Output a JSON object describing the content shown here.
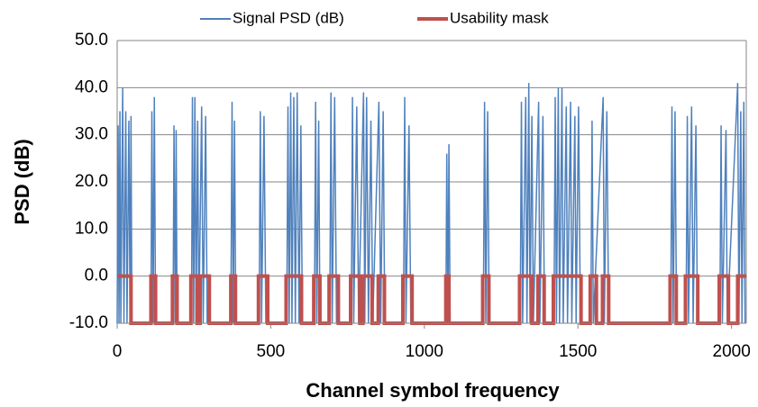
{
  "chart_data": {
    "type": "line",
    "xlabel": "Channel symbol frequency",
    "ylabel": "PSD (dB)",
    "xlim": [
      0,
      2048
    ],
    "xticks": [
      0,
      500,
      1000,
      1500,
      2000
    ],
    "ylim": [
      -10,
      50
    ],
    "yticks": [
      {
        "value": -10,
        "label": "-10.0"
      },
      {
        "value": 0,
        "label": "0.0"
      },
      {
        "value": 10,
        "label": "10.0"
      },
      {
        "value": 20,
        "label": "20.0"
      },
      {
        "value": 30,
        "label": "30.0"
      },
      {
        "value": 40,
        "label": "40.0"
      },
      {
        "value": 50,
        "label": "50.0"
      }
    ],
    "grid": true,
    "legend": "top",
    "series": [
      {
        "name": "Signal PSD (dB)",
        "color": "#4f81bd",
        "x": [
          0,
          3,
          6,
          9,
          12,
          18,
          22,
          28,
          32,
          38,
          42,
          45,
          48,
          110,
          113,
          117,
          121,
          125,
          182,
          185,
          189,
          192,
          195,
          242,
          245,
          249,
          253,
          257,
          262,
          266,
          275,
          280,
          288,
          293,
          370,
          374,
          378,
          382,
          386,
          462,
          466,
          470,
          478,
          484,
          552,
          556,
          560,
          565,
          569,
          575,
          580,
          586,
          592,
          598,
          603,
          642,
          646,
          650,
          656,
          660,
          692,
          696,
          700,
          708,
          714,
          762,
          766,
          770,
          780,
          786,
          802,
          806,
          812,
          818,
          826,
          832,
          852,
          858,
          866,
          871,
          932,
          936,
          940,
          950,
          956,
          1070,
          1073,
          1077,
          1080,
          1084,
          1192,
          1196,
          1200,
          1206,
          1211,
          1312,
          1316,
          1320,
          1330,
          1334,
          1340,
          1344,
          1350,
          1355,
          1372,
          1376,
          1386,
          1391,
          1422,
          1426,
          1430,
          1436,
          1440,
          1448,
          1452,
          1462,
          1466,
          1476,
          1480,
          1490,
          1494,
          1502,
          1508,
          1542,
          1546,
          1550,
          1582,
          1586,
          1594,
          1600,
          1802,
          1806,
          1810,
          1816,
          1821,
          1852,
          1856,
          1860,
          1870,
          1875,
          1884,
          1889,
          1962,
          1966,
          1970,
          1982,
          1986,
          2020,
          2024,
          2030,
          2034,
          2040,
          2044
        ],
        "values": [
          -10,
          32,
          -10,
          35,
          -10,
          40,
          -10,
          35,
          -10,
          33,
          -10,
          34,
          -10,
          -10,
          35,
          -10,
          38,
          -10,
          -10,
          32,
          -10,
          31,
          -10,
          -10,
          38,
          -10,
          38,
          -10,
          33,
          -10,
          36,
          -10,
          34,
          -10,
          -10,
          37,
          -10,
          33,
          -10,
          -10,
          35,
          -10,
          34,
          -10,
          -10,
          36,
          -10,
          39,
          -10,
          38,
          -10,
          39,
          -10,
          32,
          -10,
          -10,
          37,
          -10,
          33,
          -10,
          -10,
          39,
          -10,
          38,
          -10,
          -10,
          38,
          -10,
          36,
          -10,
          39,
          -10,
          38,
          -10,
          33,
          -10,
          37,
          -10,
          35,
          -10,
          -10,
          38,
          -10,
          32,
          -10,
          -10,
          26,
          -10,
          28,
          -10,
          -10,
          37,
          -10,
          35,
          -10,
          -10,
          37,
          -10,
          38,
          -10,
          41,
          -10,
          34,
          -10,
          37,
          -10,
          34,
          -10,
          -10,
          38,
          -10,
          40,
          -10,
          40,
          -10,
          36,
          -10,
          37,
          -10,
          34,
          -10,
          36,
          -10,
          -10,
          33,
          -10,
          38,
          -10,
          35,
          -10,
          -10,
          36,
          -10,
          35,
          -10,
          -10,
          34,
          -10,
          36,
          -10,
          32,
          -10,
          -10,
          32,
          -10,
          31,
          -10,
          41,
          -10,
          35,
          -10,
          37,
          -10
        ]
      },
      {
        "name": "Usability mask",
        "color": "#c0504d",
        "x": [
          0,
          45,
          45,
          110,
          110,
          125,
          125,
          180,
          180,
          195,
          195,
          240,
          240,
          260,
          260,
          270,
          270,
          300,
          300,
          370,
          370,
          385,
          385,
          460,
          460,
          490,
          490,
          550,
          550,
          600,
          600,
          640,
          640,
          660,
          660,
          690,
          690,
          720,
          720,
          760,
          760,
          790,
          790,
          800,
          800,
          830,
          830,
          850,
          850,
          870,
          870,
          930,
          930,
          960,
          960,
          1070,
          1070,
          1080,
          1080,
          1190,
          1190,
          1210,
          1210,
          1310,
          1310,
          1350,
          1350,
          1370,
          1370,
          1390,
          1390,
          1420,
          1420,
          1510,
          1510,
          1540,
          1540,
          1560,
          1560,
          1580,
          1580,
          1600,
          1600,
          1800,
          1800,
          1820,
          1820,
          1850,
          1850,
          1890,
          1890,
          1960,
          1960,
          1990,
          1990,
          2020,
          2020,
          2048
        ],
        "values": [
          0,
          0,
          -10,
          -10,
          0,
          0,
          -10,
          -10,
          0,
          0,
          -10,
          -10,
          0,
          0,
          -10,
          -10,
          0,
          0,
          -10,
          -10,
          0,
          0,
          -10,
          -10,
          0,
          0,
          -10,
          -10,
          0,
          0,
          -10,
          -10,
          0,
          0,
          -10,
          -10,
          0,
          0,
          -10,
          -10,
          0,
          0,
          -10,
          -10,
          0,
          0,
          -10,
          -10,
          0,
          0,
          -10,
          -10,
          0,
          0,
          -10,
          -10,
          0,
          0,
          -10,
          -10,
          0,
          0,
          -10,
          -10,
          0,
          0,
          -10,
          -10,
          0,
          0,
          -10,
          -10,
          0,
          0,
          -10,
          -10,
          0,
          0,
          -10,
          -10,
          0,
          0,
          -10,
          -10,
          0,
          0,
          -10,
          -10,
          0,
          0,
          -10,
          -10,
          0,
          0,
          -10,
          -10,
          0,
          0
        ]
      }
    ]
  }
}
